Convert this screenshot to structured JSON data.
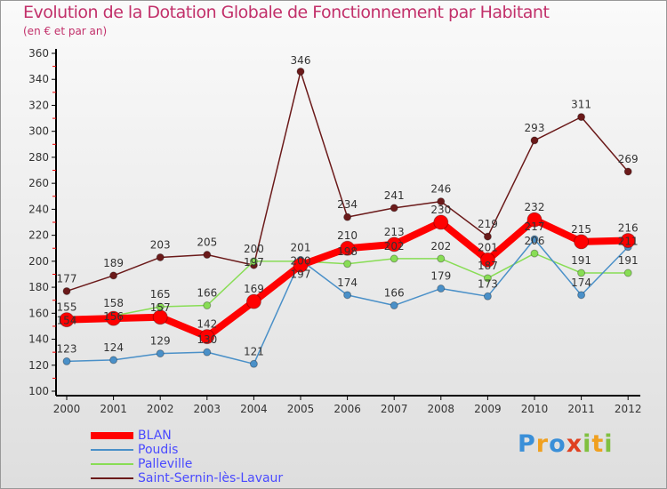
{
  "title": "Evolution de la Dotation Globale de Fonctionnement par Habitant",
  "subtitle": "(en € et par an)",
  "logo": "Proxiti",
  "chart_data": {
    "type": "line",
    "title": "Evolution de la Dotation Globale de Fonctionnement par Habitant",
    "subtitle": "(en € et par an)",
    "x": [
      2000,
      2001,
      2002,
      2003,
      2004,
      2005,
      2006,
      2007,
      2008,
      2009,
      2010,
      2011,
      2012
    ],
    "ylim": [
      100,
      360
    ],
    "yticks": [
      100,
      120,
      140,
      160,
      180,
      200,
      220,
      240,
      260,
      280,
      300,
      320,
      340,
      360
    ],
    "grid": false,
    "legend": "bottom-left",
    "series": [
      {
        "name": "BLAN",
        "color": "#ff0000",
        "values": [
          155,
          156,
          157,
          142,
          169,
          197,
          210,
          213,
          230,
          201,
          232,
          215,
          216
        ]
      },
      {
        "name": "Poudis",
        "color": "#4a90c8",
        "values": [
          123,
          124,
          129,
          130,
          121,
          201,
          174,
          166,
          179,
          173,
          217,
          174,
          211
        ]
      },
      {
        "name": "Palleville",
        "color": "#88dd55",
        "values": [
          154,
          158,
          165,
          166,
          200,
          200,
          198,
          202,
          202,
          187,
          206,
          191,
          191
        ]
      },
      {
        "name": "Saint-Sernin-lès-Lavaur",
        "color": "#6b1a1a",
        "values": [
          177,
          189,
          203,
          205,
          197,
          346,
          234,
          241,
          246,
          219,
          293,
          311,
          269
        ]
      }
    ]
  }
}
